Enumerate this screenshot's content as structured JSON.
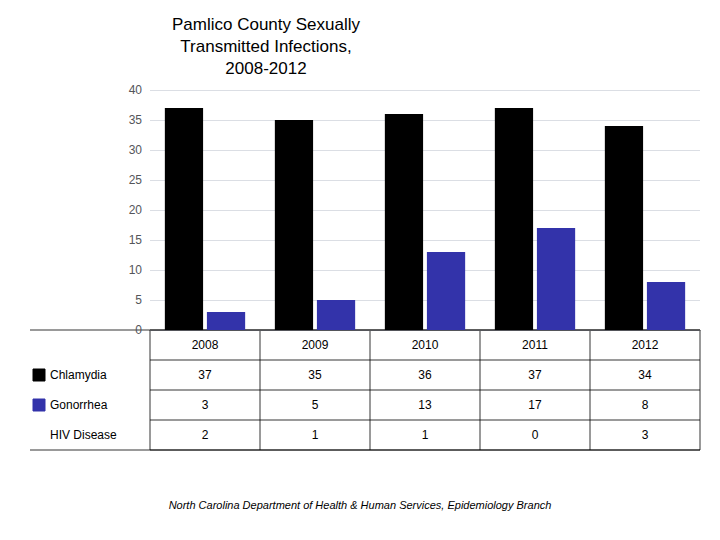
{
  "chart_data": {
    "type": "bar",
    "title": "Pamlico County Sexually\nTransmitted Infections,\n2008-2012",
    "categories": [
      "2008",
      "2009",
      "2010",
      "2011",
      "2012"
    ],
    "series": [
      {
        "name": "Chlamydia",
        "color": "#000000",
        "values": [
          37,
          35,
          36,
          37,
          34
        ]
      },
      {
        "name": "Gonorrhea",
        "color": "#3333AA",
        "values": [
          3,
          5,
          13,
          17,
          8
        ]
      },
      {
        "name": "HIV Disease",
        "type": "table",
        "values": [
          2,
          1,
          1,
          0,
          3
        ]
      }
    ],
    "ylim": [
      0,
      40
    ],
    "yticks": [
      0,
      5,
      10,
      15,
      20,
      25,
      30,
      35,
      40
    ],
    "grid": true,
    "tick_labels": "y",
    "footer": "North Carolina Department of Health & Human Services, Epidemiology Branch"
  }
}
